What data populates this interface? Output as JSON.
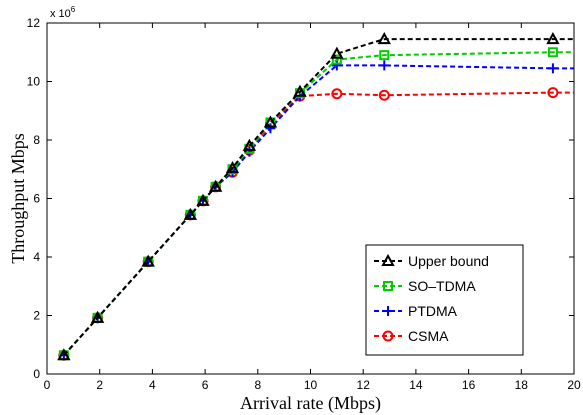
{
  "chart_data": {
    "type": "line",
    "xlabel": "Arrival rate (Mbps)",
    "ylabel": "Throughput Mbps",
    "y_exponent_label": "x 10",
    "y_exponent_power": "6",
    "xlim": [
      0,
      20
    ],
    "ylim": [
      0,
      12000000
    ],
    "x_ticks": [
      0,
      2,
      4,
      6,
      8,
      10,
      12,
      14,
      16,
      18,
      20
    ],
    "y_ticks": [
      0,
      2000000,
      4000000,
      6000000,
      8000000,
      10000000,
      12000000
    ],
    "x_tick_labels": [
      "0",
      "2",
      "4",
      "6",
      "8",
      "10",
      "12",
      "14",
      "16",
      "18",
      "20"
    ],
    "y_tick_labels": [
      "0",
      "2",
      "4",
      "6",
      "8",
      "10",
      "12"
    ],
    "grid": false,
    "legend_position": "lower-right",
    "series": [
      {
        "name": "Upper bound",
        "color": "#000000",
        "marker": "triangle",
        "x": [
          0.64,
          1.92,
          3.84,
          5.44,
          5.92,
          6.4,
          7.04,
          7.68,
          8.48,
          9.6,
          11.0,
          12.8,
          19.2,
          20
        ],
        "y": [
          640000,
          1920000,
          3840000,
          5440000,
          5920000,
          6400000,
          7040000,
          7800000,
          8600000,
          9650000,
          10950000,
          11450000,
          11450000,
          11450000
        ]
      },
      {
        "name": "SO-TDMA",
        "color": "#00cc00",
        "marker": "square",
        "x": [
          0.64,
          1.92,
          3.84,
          5.44,
          5.92,
          6.4,
          7.04,
          7.68,
          8.48,
          9.6,
          11.0,
          12.8,
          19.2,
          20
        ],
        "y": [
          640000,
          1920000,
          3840000,
          5440000,
          5920000,
          6400000,
          7000000,
          7700000,
          8600000,
          9600000,
          10750000,
          10900000,
          11000000,
          11000000
        ]
      },
      {
        "name": "PTDMA",
        "color": "#0000ff",
        "marker": "plus",
        "x": [
          0.64,
          1.92,
          3.84,
          5.44,
          5.92,
          6.4,
          7.04,
          7.68,
          8.48,
          9.6,
          11.0,
          12.8,
          19.2,
          20
        ],
        "y": [
          640000,
          1920000,
          3840000,
          5440000,
          5920000,
          6400000,
          6900000,
          7600000,
          8400000,
          9500000,
          10550000,
          10550000,
          10450000,
          10450000
        ]
      },
      {
        "name": "CSMA",
        "color": "#ff0000",
        "marker": "circle",
        "x": [
          0.64,
          1.92,
          3.84,
          5.44,
          5.92,
          6.4,
          7.04,
          7.68,
          8.48,
          9.6,
          11.0,
          12.8,
          19.2,
          20
        ],
        "y": [
          640000,
          1920000,
          3840000,
          5440000,
          5920000,
          6400000,
          6900000,
          7650000,
          8550000,
          9500000,
          9580000,
          9530000,
          9620000,
          9620000
        ]
      }
    ]
  }
}
